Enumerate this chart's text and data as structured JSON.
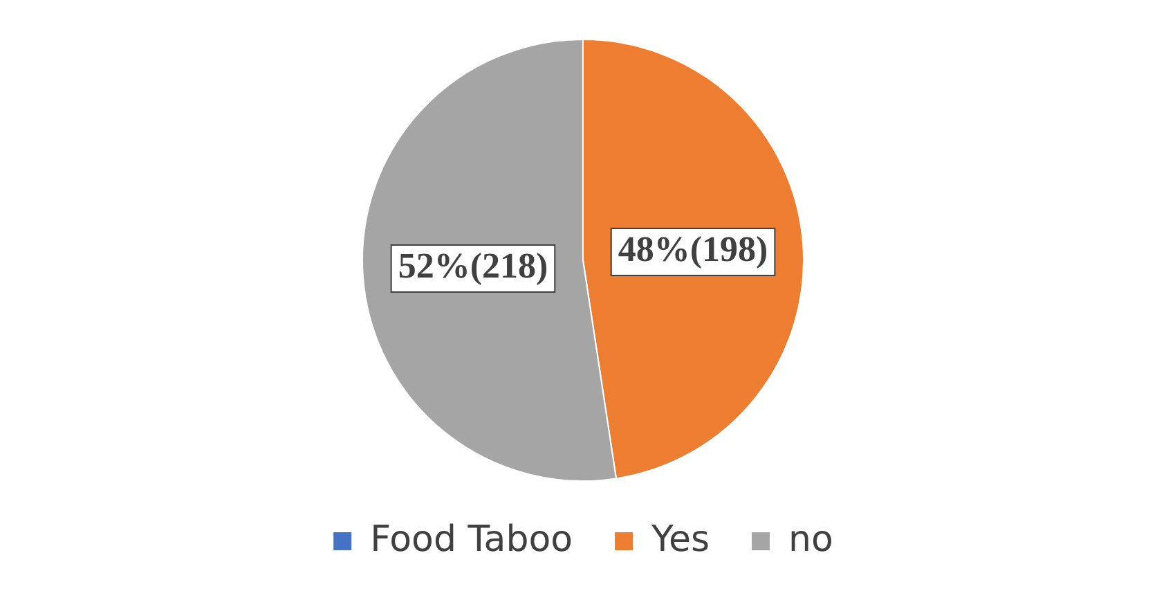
{
  "chart_data": {
    "type": "pie",
    "categories": [
      "Food Taboo",
      "Yes",
      "no"
    ],
    "values": [
      0,
      198,
      218
    ],
    "colors": [
      "#4472c4",
      "#ed7d31",
      "#a5a5a5"
    ],
    "value_labels": [
      null,
      "48%(198)",
      "52%(218)"
    ],
    "legend": "bottom"
  }
}
